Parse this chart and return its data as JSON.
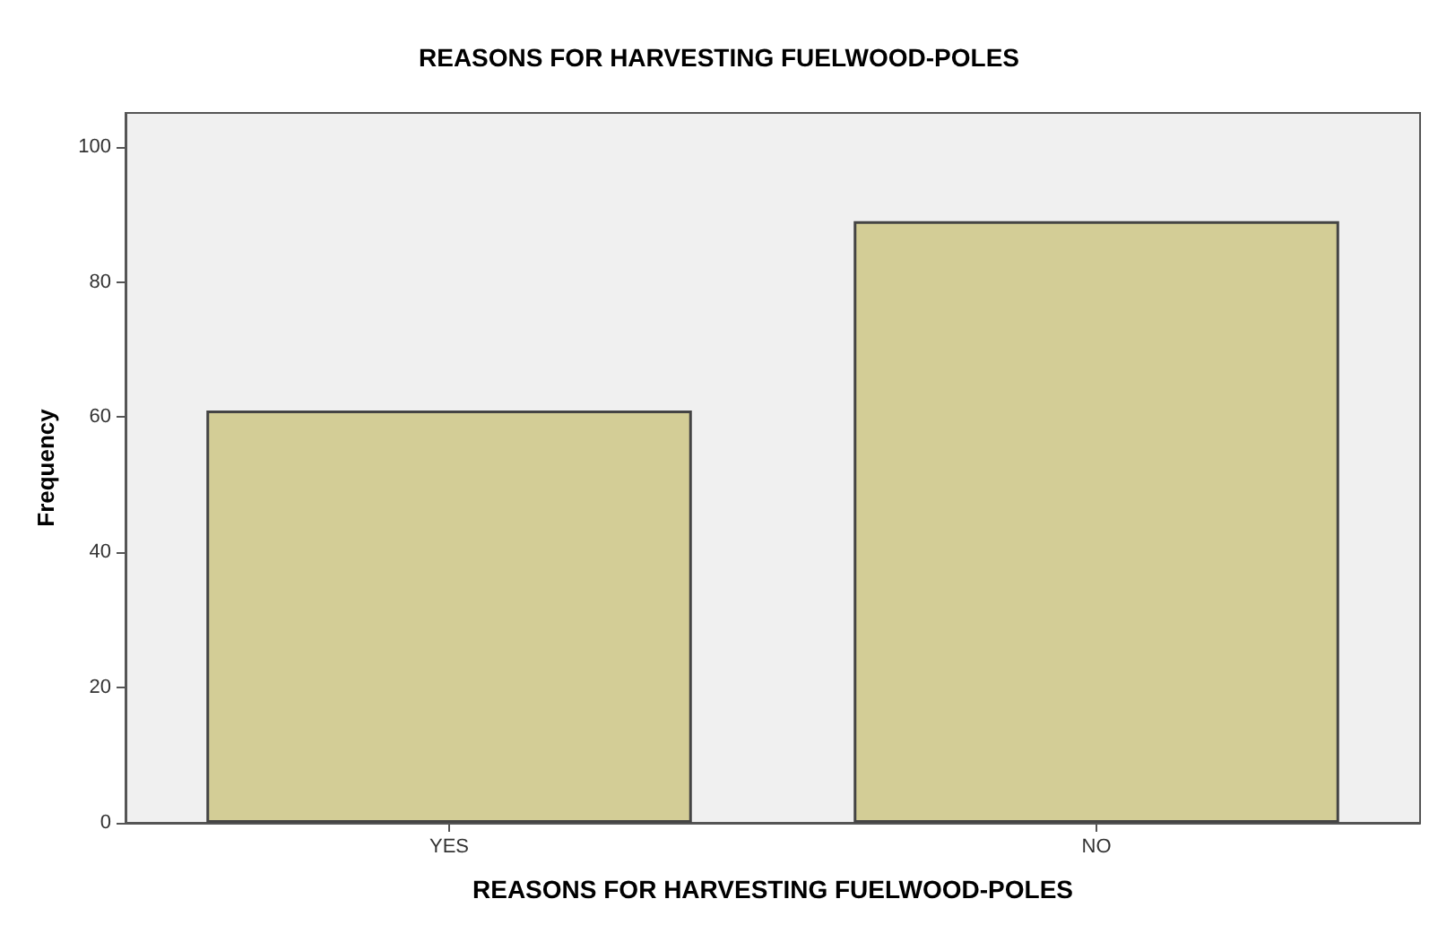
{
  "chart_data": {
    "type": "bar",
    "title": "REASONS FOR HARVESTING FUELWOOD-POLES",
    "xlabel": "REASONS FOR HARVESTING FUELWOOD-POLES",
    "ylabel": "Frequency",
    "categories": [
      "YES",
      "NO"
    ],
    "values": [
      61,
      89
    ],
    "color": "#d3cd96",
    "ylim": [
      0,
      105
    ],
    "yticks": [
      0,
      20,
      40,
      60,
      80,
      100
    ],
    "grid": false
  }
}
